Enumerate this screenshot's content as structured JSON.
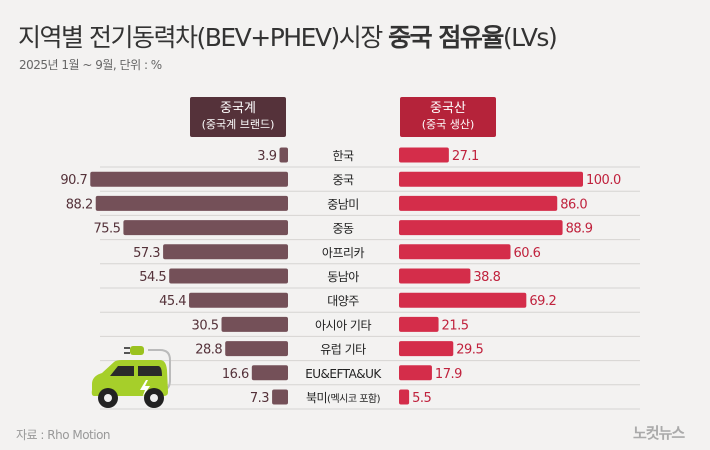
{
  "title_a": "지역별 전기동력차(BEV+PHEV)시장 ",
  "title_b": "중국 점유율",
  "title_c": "(LVs)",
  "subtitle": "2025년 1월 ~ 9월, 단위 : %",
  "source": "자료 : Rho Motion",
  "logo": "노컷뉴스",
  "colors": {
    "left": "#745058",
    "right": "#d42d4a"
  },
  "chart_data": {
    "type": "bar",
    "title": "지역별 전기동력차(BEV+PHEV)시장 중국 점유율(LVs)",
    "categories": [
      "한국",
      "중국",
      "중남미",
      "중동",
      "아프리카",
      "동남아",
      "대양주",
      "아시아 기타",
      "유럽 기타",
      "EU&EFTA&UK",
      "북미(멕시코 포함)"
    ],
    "series": [
      {
        "name": "중국계",
        "subname": "(중국계 브랜드)",
        "values": [
          3.9,
          90.7,
          88.2,
          75.5,
          57.3,
          54.5,
          45.4,
          30.5,
          28.8,
          16.6,
          7.3
        ]
      },
      {
        "name": "중국산",
        "subname": "(중국 생산)",
        "values": [
          27.1,
          100.0,
          86.0,
          88.9,
          60.6,
          38.8,
          69.2,
          21.5,
          29.5,
          17.9,
          5.5
        ]
      }
    ]
  }
}
